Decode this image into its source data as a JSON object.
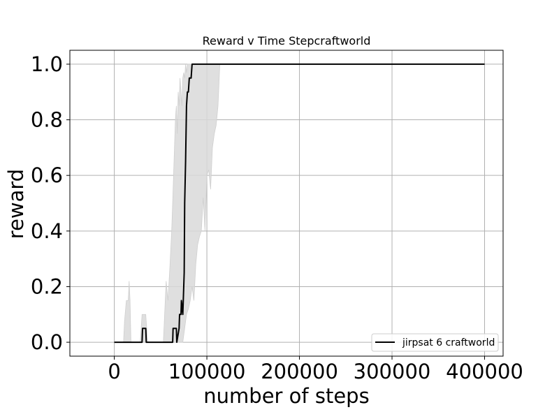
{
  "chart_data": {
    "type": "line",
    "title": "Reward v Time Stepcraftworld",
    "xlabel": "number of steps",
    "ylabel": "reward",
    "xlim": [
      -48000,
      420000
    ],
    "ylim": [
      -0.05,
      1.05
    ],
    "xticks": [
      0,
      100000,
      200000,
      300000,
      400000
    ],
    "yticks": [
      0.0,
      0.2,
      0.4,
      0.6,
      0.8,
      1.0
    ],
    "xtick_labels": [
      "0",
      "100000",
      "200000",
      "300000",
      "400000"
    ],
    "ytick_labels": [
      "0.0",
      "0.2",
      "0.4",
      "0.6",
      "0.8",
      "1.0"
    ],
    "grid": true,
    "legend_position": "lower-right",
    "colors": {
      "line": "#000000",
      "band": "#d9d9d9",
      "grid": "#b0b0b0"
    },
    "series": [
      {
        "name": "jirpsat 6 craftworld",
        "x": [
          0,
          30000,
          30500,
          34000,
          34500,
          63000,
          63500,
          67000,
          67500,
          70000,
          70500,
          72000,
          72500,
          74000,
          74500,
          75500,
          76000,
          77000,
          78000,
          79000,
          80000,
          81000,
          82000,
          83000,
          83500,
          84000,
          85000,
          400000
        ],
        "y": [
          0.0,
          0.0,
          0.05,
          0.05,
          0.0,
          0.0,
          0.05,
          0.05,
          0.0,
          0.05,
          0.1,
          0.1,
          0.15,
          0.1,
          0.15,
          0.25,
          0.5,
          0.65,
          0.85,
          0.9,
          0.9,
          0.95,
          0.95,
          0.95,
          0.975,
          1.0,
          1.0,
          1.0
        ],
        "band_upper": {
          "x": [
            0,
            10000,
            11000,
            13000,
            15000,
            16000,
            17000,
            18000,
            28000,
            30000,
            34000,
            36000,
            53000,
            55000,
            56000,
            58000,
            60000,
            62000,
            63000,
            64000,
            65000,
            66000,
            67000,
            68000,
            69000,
            70000,
            71000,
            72000,
            73000,
            74000,
            75000,
            76000,
            77000,
            78000,
            79000,
            80000,
            400000
          ],
          "y": [
            0.0,
            0.0,
            0.075,
            0.15,
            0.15,
            0.22,
            0.15,
            0.0,
            0.0,
            0.1,
            0.1,
            0.0,
            0.0,
            0.15,
            0.22,
            0.15,
            0.27,
            0.4,
            0.5,
            0.6,
            0.7,
            0.8,
            0.85,
            0.75,
            0.9,
            0.85,
            0.95,
            0.9,
            0.85,
            0.95,
            0.97,
            0.95,
            1.0,
            0.97,
            1.0,
            1.0,
            1.0
          ]
        },
        "band_lower": {
          "x": [
            0,
            68000,
            70000,
            72000,
            74000,
            76000,
            78000,
            80000,
            82000,
            84000,
            86000,
            88000,
            90000,
            92000,
            94000,
            96000,
            98000,
            100000,
            102000,
            104000,
            106000,
            108000,
            110000,
            112000,
            114000,
            400000
          ],
          "y": [
            0.0,
            0.0,
            0.0,
            0.0,
            0.0,
            0.05,
            0.1,
            0.12,
            0.15,
            0.2,
            0.15,
            0.28,
            0.35,
            0.38,
            0.4,
            0.52,
            0.4,
            0.6,
            0.62,
            0.55,
            0.7,
            0.75,
            0.78,
            0.85,
            1.0,
            1.0
          ]
        }
      }
    ]
  }
}
